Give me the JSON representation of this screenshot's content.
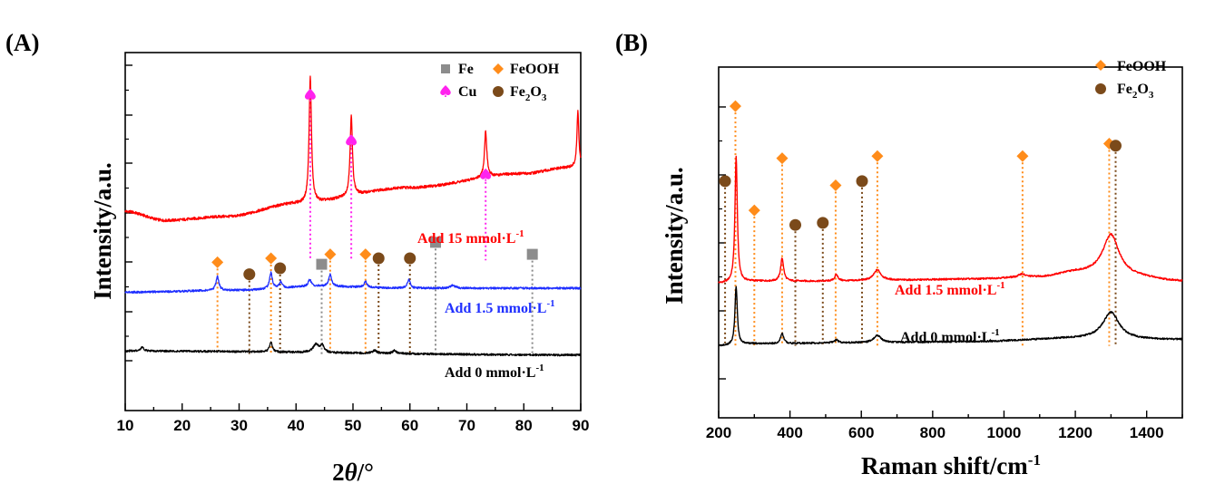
{
  "colors": {
    "red": "#ff0000",
    "blue": "#1f2fff",
    "black": "#000000",
    "fe_square": "#8c8c8c",
    "feooh_diamond": "#ff8c1a",
    "cu_spade": "#ff22ee",
    "fe2o3_circle": "#7b4a1a"
  },
  "chart_data": [
    {
      "panel_label": "(A)",
      "type": "line",
      "xlabel_main": "2",
      "xlabel_italic": "θ",
      "xlabel_unit": "/°",
      "ylabel": "Intensity/a.u.",
      "xlim": [
        10,
        90
      ],
      "xticks": [
        "10",
        "20",
        "30",
        "40",
        "50",
        "60",
        "70",
        "80",
        "90"
      ],
      "legend": [
        {
          "marker": "square",
          "label": "Fe"
        },
        {
          "marker": "diamond",
          "label": "FeOOH"
        },
        {
          "marker": "spade",
          "label": "Cu"
        },
        {
          "marker": "circle",
          "label_base": "Fe",
          "sub1": "2",
          "mid": "O",
          "sub2": "3"
        }
      ],
      "series": [
        {
          "name": "Add 15 mmol·L",
          "sup": "-1",
          "color": "red",
          "offset": 0.69,
          "baseline": [
            [
              10,
              0.045
            ],
            [
              17,
              0.0
            ],
            [
              28,
              0.02
            ],
            [
              40,
              0.085
            ],
            [
              60,
              0.165
            ],
            [
              80,
              0.235
            ],
            [
              88,
              0.265
            ],
            [
              90,
              0.27
            ]
          ],
          "peaks": [
            [
              42.5,
              0.63,
              0.25
            ],
            [
              49.7,
              0.4,
              0.25
            ],
            [
              73.3,
              0.23,
              0.25
            ],
            [
              89.5,
              0.28,
              0.2
            ]
          ]
        },
        {
          "name": "Add 1.5 mmol·L",
          "sup": "-1",
          "color": "blue",
          "offset": 0.33,
          "baseline": [
            [
              10,
              0.0
            ],
            [
              30,
              0.01
            ],
            [
              44,
              0.03
            ],
            [
              60,
              0.02
            ],
            [
              90,
              0.02
            ]
          ],
          "peaks": [
            [
              26.2,
              0.07,
              0.3
            ],
            [
              35.6,
              0.08,
              0.3
            ],
            [
              37.3,
              0.03,
              0.3
            ],
            [
              42.4,
              0.035,
              0.3
            ],
            [
              46.0,
              0.06,
              0.3
            ],
            [
              52.2,
              0.03,
              0.3
            ],
            [
              59.8,
              0.045,
              0.3
            ],
            [
              67.5,
              0.015,
              0.5
            ]
          ]
        },
        {
          "name": "Add 0 mmol·L",
          "sup": "-1",
          "color": "black",
          "offset": 0.015,
          "baseline": [
            [
              10,
              0.02
            ],
            [
              90,
              0.0
            ]
          ],
          "peaks": [
            [
              13.0,
              0.02,
              0.3
            ],
            [
              35.6,
              0.05,
              0.3
            ],
            [
              43.5,
              0.04,
              0.6
            ],
            [
              44.6,
              0.035,
              0.35
            ],
            [
              53.8,
              0.015,
              0.4
            ],
            [
              57.3,
              0.015,
              0.4
            ]
          ]
        }
      ],
      "markers": [
        {
          "type": "spade",
          "x": 42.5,
          "top": 1.315,
          "bottom": 0.49,
          "color": "cu_spade"
        },
        {
          "type": "spade",
          "x": 49.7,
          "top": 1.085,
          "bottom": 0.49,
          "color": "cu_spade"
        },
        {
          "type": "spade",
          "x": 73.3,
          "top": 0.915,
          "bottom": 0.49,
          "color": "cu_spade"
        },
        {
          "type": "diamond",
          "x": 26.2,
          "top": 0.48,
          "bottom": 0.02,
          "color": "feooh_diamond"
        },
        {
          "type": "diamond",
          "x": 35.6,
          "top": 0.5,
          "bottom": 0.02,
          "color": "feooh_diamond"
        },
        {
          "type": "diamond",
          "x": 46.0,
          "top": 0.52,
          "bottom": 0.02,
          "color": "feooh_diamond"
        },
        {
          "type": "diamond",
          "x": 52.2,
          "top": 0.52,
          "bottom": 0.02,
          "color": "feooh_diamond"
        },
        {
          "type": "circle",
          "x": 31.8,
          "top": 0.42,
          "bottom": 0.02,
          "color": "fe2o3_circle"
        },
        {
          "type": "circle",
          "x": 37.2,
          "top": 0.45,
          "bottom": 0.02,
          "color": "fe2o3_circle"
        },
        {
          "type": "circle",
          "x": 54.5,
          "top": 0.5,
          "bottom": 0.02,
          "color": "fe2o3_circle"
        },
        {
          "type": "circle",
          "x": 60.0,
          "top": 0.5,
          "bottom": 0.02,
          "color": "fe2o3_circle"
        },
        {
          "type": "square",
          "x": 44.5,
          "top": 0.47,
          "bottom": 0.02,
          "color": "fe_square"
        },
        {
          "type": "square",
          "x": 64.5,
          "top": 0.58,
          "bottom": 0.02,
          "color": "fe_square"
        },
        {
          "type": "square",
          "x": 81.5,
          "top": 0.52,
          "bottom": 0.02,
          "color": "fe_square"
        }
      ]
    },
    {
      "panel_label": "(B)",
      "type": "line",
      "xlabel_main": "Raman shift/cm",
      "xlabel_sup": "-1",
      "ylabel": "Intensity/a.u.",
      "xlim": [
        200,
        1500
      ],
      "xticks": [
        "200",
        "400",
        "600",
        "800",
        "1000",
        "1200",
        "1400"
      ],
      "legend": [
        {
          "marker": "diamond",
          "label": "FeOOH"
        },
        {
          "marker": "circle",
          "label_base": "Fe",
          "sub1": "2",
          "mid": "O",
          "sub2": "3"
        }
      ],
      "series": [
        {
          "name": "Add 1.5 mmol·L",
          "sup": "-1",
          "color": "red",
          "offset": 0.38,
          "baseline": [
            [
              200,
              0.0
            ],
            [
              300,
              0.01
            ],
            [
              500,
              0.01
            ],
            [
              700,
              0.015
            ],
            [
              900,
              0.02
            ],
            [
              1100,
              0.03
            ],
            [
              1200,
              0.05
            ],
            [
              1350,
              0.03
            ],
            [
              1500,
              0.01
            ]
          ],
          "peaks": [
            [
              249,
              0.6,
              4
            ],
            [
              378,
              0.11,
              5
            ],
            [
              530,
              0.03,
              6
            ],
            [
              645,
              0.05,
              12
            ],
            [
              1050,
              0.015,
              10
            ],
            [
              1300,
              0.2,
              28
            ]
          ]
        },
        {
          "name": "Add 0 mmol·L",
          "sup": "-1",
          "color": "black",
          "offset": 0.08,
          "baseline": [
            [
              200,
              0.0
            ],
            [
              300,
              0.01
            ],
            [
              600,
              0.015
            ],
            [
              900,
              0.02
            ],
            [
              1200,
              0.035
            ],
            [
              1350,
              0.03
            ],
            [
              1500,
              0.03
            ]
          ],
          "peaks": [
            [
              249,
              0.28,
              4
            ],
            [
              378,
              0.05,
              5
            ],
            [
              530,
              0.015,
              6
            ],
            [
              645,
              0.035,
              12
            ],
            [
              1300,
              0.13,
              28
            ]
          ]
        }
      ],
      "markers": [
        {
          "type": "circle",
          "x": 218,
          "top": 0.87,
          "bottom": 0.08,
          "color": "fe2o3_circle"
        },
        {
          "type": "diamond",
          "x": 247,
          "top": 1.23,
          "bottom": 0.08,
          "color": "feooh_diamond"
        },
        {
          "type": "diamond",
          "x": 300,
          "top": 0.73,
          "bottom": 0.08,
          "color": "feooh_diamond"
        },
        {
          "type": "diamond",
          "x": 378,
          "top": 0.98,
          "bottom": 0.08,
          "color": "feooh_diamond"
        },
        {
          "type": "circle",
          "x": 415,
          "top": 0.66,
          "bottom": 0.08,
          "color": "fe2o3_circle"
        },
        {
          "type": "circle",
          "x": 492,
          "top": 0.67,
          "bottom": 0.08,
          "color": "fe2o3_circle"
        },
        {
          "type": "diamond",
          "x": 528,
          "top": 0.85,
          "bottom": 0.08,
          "color": "feooh_diamond"
        },
        {
          "type": "circle",
          "x": 602,
          "top": 0.87,
          "bottom": 0.08,
          "color": "fe2o3_circle"
        },
        {
          "type": "diamond",
          "x": 645,
          "top": 0.99,
          "bottom": 0.08,
          "color": "feooh_diamond"
        },
        {
          "type": "diamond",
          "x": 1052,
          "top": 0.99,
          "bottom": 0.08,
          "color": "feooh_diamond"
        },
        {
          "type": "diamond",
          "x": 1295,
          "top": 1.05,
          "bottom": 0.08,
          "color": "feooh_diamond"
        },
        {
          "type": "circle",
          "x": 1313,
          "top": 1.04,
          "bottom": 0.08,
          "color": "fe2o3_circle"
        }
      ]
    }
  ]
}
